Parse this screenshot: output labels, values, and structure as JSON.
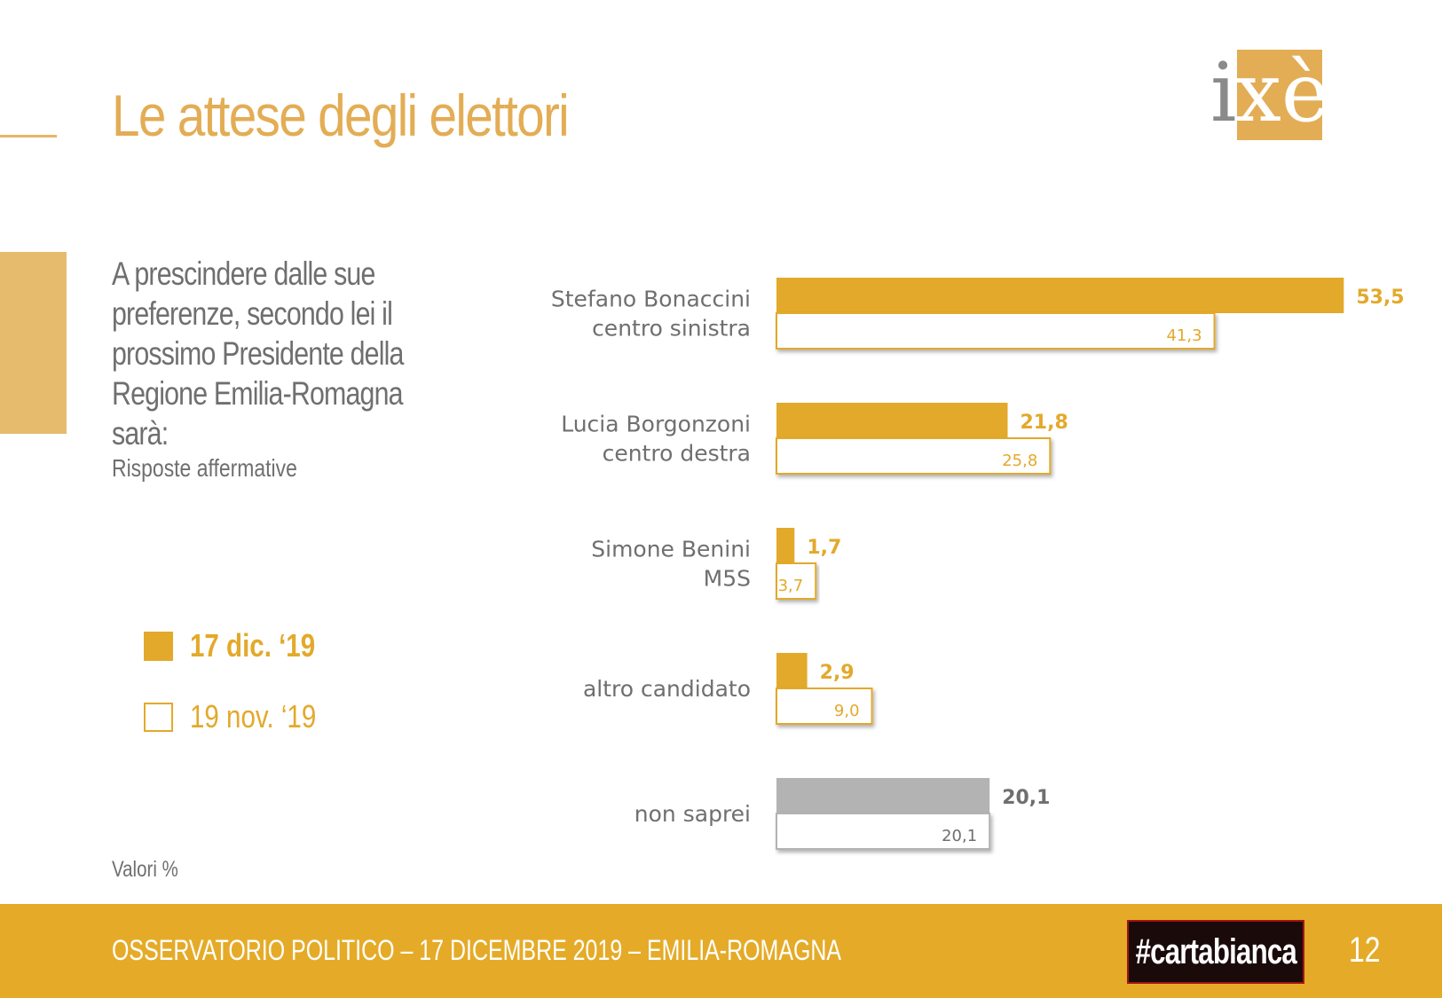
{
  "header": {
    "title": "Le attese degli elettori",
    "logo_text": "ixè"
  },
  "question": {
    "text": "A prescindere dalle sue preferenze, secondo lei il prossimo Presidente della Regione Emilia-Romagna sarà:",
    "subnote": "Risposte affermative"
  },
  "legend": [
    {
      "label": "17 dic. ‘19",
      "style": "filled",
      "color": "#e3a92b"
    },
    {
      "label": "19 nov. ‘19",
      "style": "outline",
      "color": "#e3a92b"
    }
  ],
  "note": "Valori %",
  "footer": {
    "text": "OSSERVATORIO POLITICO – 17 DICEMBRE 2019 – EMILIA-ROMAGNA",
    "brand": "#cartabianca",
    "page_number": "12"
  },
  "colors": {
    "accent": "#e3a92b",
    "neutral": "#b3b3b3",
    "text_gray": "#6f6f6f"
  },
  "chart_data": {
    "type": "bar",
    "orientation": "horizontal",
    "categories": [
      [
        "Stefano Bonaccini",
        "centro sinistra"
      ],
      [
        "Lucia Borgonzoni",
        "centro destra"
      ],
      [
        "Simone Benini",
        "M5S"
      ],
      [
        "altro candidato"
      ],
      [
        "non saprei"
      ]
    ],
    "series": [
      {
        "name": "17 dic. ‘19",
        "values": [
          53.5,
          21.8,
          1.7,
          2.9,
          20.1
        ],
        "labels": [
          "53,5",
          "21,8",
          "1,7",
          "2,9",
          "20,1"
        ]
      },
      {
        "name": "19 nov. ‘19",
        "values": [
          41.3,
          25.8,
          3.7,
          9.0,
          20.1
        ],
        "labels": [
          "41,3",
          "25,8",
          "3,7",
          "9,0",
          "20,1"
        ]
      }
    ],
    "highlight_neutral_category": 4,
    "xlim": [
      0,
      60
    ],
    "grid": false,
    "legend_position": "left"
  }
}
